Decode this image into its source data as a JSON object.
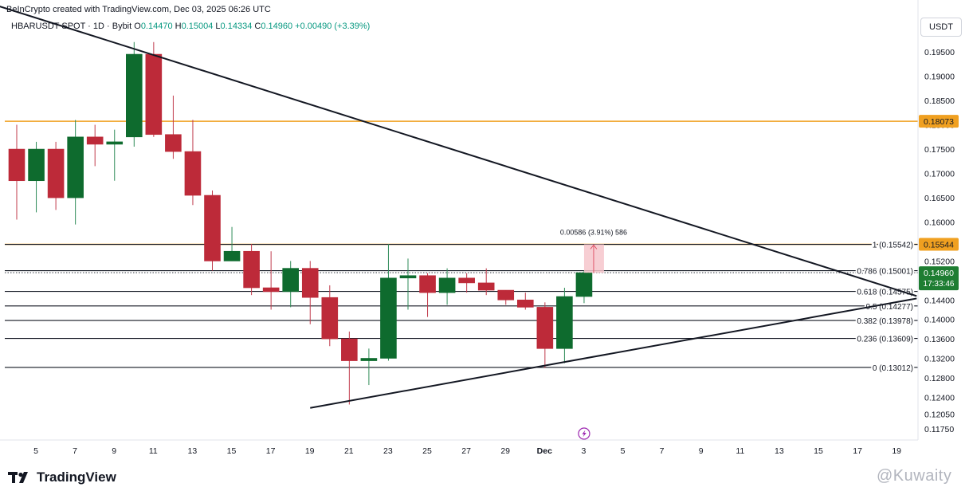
{
  "header": {
    "caption": "BeInCrypto created with TradingView.com, Dec 03, 2025 06:26 UTC",
    "symbol": "HBARUSDT SPOT · 1D · Bybit",
    "open_label": "O",
    "open": "0.14470",
    "high_label": "H",
    "high": "0.15004",
    "low_label": "L",
    "low": "0.14334",
    "close_label": "C",
    "close": "0.14960",
    "change": "+0.00490 (+3.39%)"
  },
  "currency_label": "USDT",
  "logo_text": "TradingView",
  "watermark": "@Kuwaity",
  "colors": {
    "up": "#0e6b2e",
    "down": "#bd2a39",
    "orange": "#f0a020",
    "measure_fill": "#f6c5cb",
    "last_price_bg": "#1e7d32"
  },
  "chart_data": {
    "type": "candlestick",
    "ylim": [
      0.1165,
      0.1995
    ],
    "price_ticks": [
      "0.19500",
      "0.19000",
      "0.18500",
      "0.18000",
      "0.17500",
      "0.17000",
      "0.16500",
      "0.16000",
      "0.15544",
      "0.15200",
      "0.14800",
      "0.14400",
      "0.14000",
      "0.13600",
      "0.13200",
      "0.12800",
      "0.12400",
      "0.12050",
      "0.11750"
    ],
    "x_ticks": [
      "5",
      "7",
      "9",
      "11",
      "13",
      "15",
      "17",
      "19",
      "21",
      "23",
      "25",
      "27",
      "29",
      "Dec",
      "3",
      "5",
      "7",
      "9",
      "11",
      "13",
      "15",
      "17",
      "19"
    ],
    "candles": [
      {
        "date": "Nov 4",
        "open": 0.175,
        "high": 0.18,
        "low": 0.1605,
        "close": 0.1685
      },
      {
        "date": "Nov 5",
        "open": 0.1685,
        "high": 0.1765,
        "low": 0.162,
        "close": 0.175
      },
      {
        "date": "Nov 6",
        "open": 0.175,
        "high": 0.1765,
        "low": 0.1625,
        "close": 0.165
      },
      {
        "date": "Nov 7",
        "open": 0.165,
        "high": 0.181,
        "low": 0.1595,
        "close": 0.1775
      },
      {
        "date": "Nov 8",
        "open": 0.1775,
        "high": 0.18,
        "low": 0.1715,
        "close": 0.176
      },
      {
        "date": "Nov 9",
        "open": 0.176,
        "high": 0.179,
        "low": 0.1685,
        "close": 0.1765
      },
      {
        "date": "Nov 10",
        "open": 0.1775,
        "high": 0.197,
        "low": 0.1755,
        "close": 0.1945
      },
      {
        "date": "Nov 11",
        "open": 0.1945,
        "high": 0.197,
        "low": 0.1775,
        "close": 0.178
      },
      {
        "date": "Nov 12",
        "open": 0.178,
        "high": 0.186,
        "low": 0.173,
        "close": 0.1745
      },
      {
        "date": "Nov 13",
        "open": 0.1745,
        "high": 0.181,
        "low": 0.1635,
        "close": 0.1655
      },
      {
        "date": "Nov 14",
        "open": 0.1655,
        "high": 0.1665,
        "low": 0.15,
        "close": 0.152
      },
      {
        "date": "Nov 15",
        "open": 0.152,
        "high": 0.159,
        "low": 0.152,
        "close": 0.154
      },
      {
        "date": "Nov 16",
        "open": 0.154,
        "high": 0.1555,
        "low": 0.145,
        "close": 0.1465
      },
      {
        "date": "Nov 17",
        "open": 0.1465,
        "high": 0.154,
        "low": 0.142,
        "close": 0.1457
      },
      {
        "date": "Nov 18",
        "open": 0.1457,
        "high": 0.152,
        "low": 0.1425,
        "close": 0.1505
      },
      {
        "date": "Nov 19",
        "open": 0.1505,
        "high": 0.152,
        "low": 0.139,
        "close": 0.1445
      },
      {
        "date": "Nov 20",
        "open": 0.1445,
        "high": 0.147,
        "low": 0.1345,
        "close": 0.136
      },
      {
        "date": "Nov 21",
        "open": 0.136,
        "high": 0.1375,
        "low": 0.1225,
        "close": 0.1315
      },
      {
        "date": "Nov 22",
        "open": 0.1315,
        "high": 0.134,
        "low": 0.1265,
        "close": 0.132
      },
      {
        "date": "Nov 23",
        "open": 0.132,
        "high": 0.1555,
        "low": 0.1315,
        "close": 0.1485
      },
      {
        "date": "Nov 24",
        "open": 0.1485,
        "high": 0.1525,
        "low": 0.142,
        "close": 0.149
      },
      {
        "date": "Nov 25",
        "open": 0.149,
        "high": 0.1495,
        "low": 0.1405,
        "close": 0.1455
      },
      {
        "date": "Nov 26",
        "open": 0.1455,
        "high": 0.1505,
        "low": 0.143,
        "close": 0.1485
      },
      {
        "date": "Nov 27",
        "open": 0.1485,
        "high": 0.1495,
        "low": 0.1455,
        "close": 0.1475
      },
      {
        "date": "Nov 28",
        "open": 0.1475,
        "high": 0.1505,
        "low": 0.145,
        "close": 0.146
      },
      {
        "date": "Nov 29",
        "open": 0.146,
        "high": 0.146,
        "low": 0.143,
        "close": 0.144
      },
      {
        "date": "Nov 30",
        "open": 0.144,
        "high": 0.1455,
        "low": 0.142,
        "close": 0.1425
      },
      {
        "date": "Dec 1",
        "open": 0.1425,
        "high": 0.1435,
        "low": 0.13,
        "close": 0.134
      },
      {
        "date": "Dec 2",
        "open": 0.134,
        "high": 0.1465,
        "low": 0.131,
        "close": 0.1447
      },
      {
        "date": "Dec 3",
        "open": 0.1447,
        "high": 0.15004,
        "low": 0.14334,
        "close": 0.1496
      }
    ],
    "horizontal_levels": [
      {
        "label": "1 (0.15542)",
        "value": 0.15542,
        "color": "#131722"
      },
      {
        "label": "0.786 (0.15001)",
        "value": 0.15001,
        "color": "#131722"
      },
      {
        "label": "0.618 (0.14575)",
        "value": 0.14575,
        "color": "#131722"
      },
      {
        "label": "0.5 (0.14277)",
        "value": 0.14277,
        "color": "#131722"
      },
      {
        "label": "0.382 (0.13978)",
        "value": 0.13978,
        "color": "#131722"
      },
      {
        "label": "0.236 (0.13609)",
        "value": 0.13609,
        "color": "#131722"
      },
      {
        "label": "0 (0.13012)",
        "value": 0.13012,
        "color": "#131722"
      }
    ],
    "orange_levels": [
      {
        "value": 0.18073,
        "tag": "0.18073"
      },
      {
        "value": 0.15544,
        "tag": "0.15544"
      }
    ],
    "trendlines": [
      {
        "name": "descending",
        "from": {
          "date": "Nov 3",
          "price": 0.2045
        },
        "to": {
          "date": "Dec 20",
          "price": 0.1448
        }
      },
      {
        "name": "ascending",
        "from": {
          "date": "Nov 19",
          "price": 0.1218
        },
        "to": {
          "date": "Dec 20",
          "price": 0.1443
        }
      }
    ],
    "measure": {
      "label": "0.00586 (3.91%) 586",
      "from": 0.14958,
      "to": 0.15544
    },
    "last_price": {
      "value": "0.14960",
      "countdown": "17:33:46"
    }
  }
}
